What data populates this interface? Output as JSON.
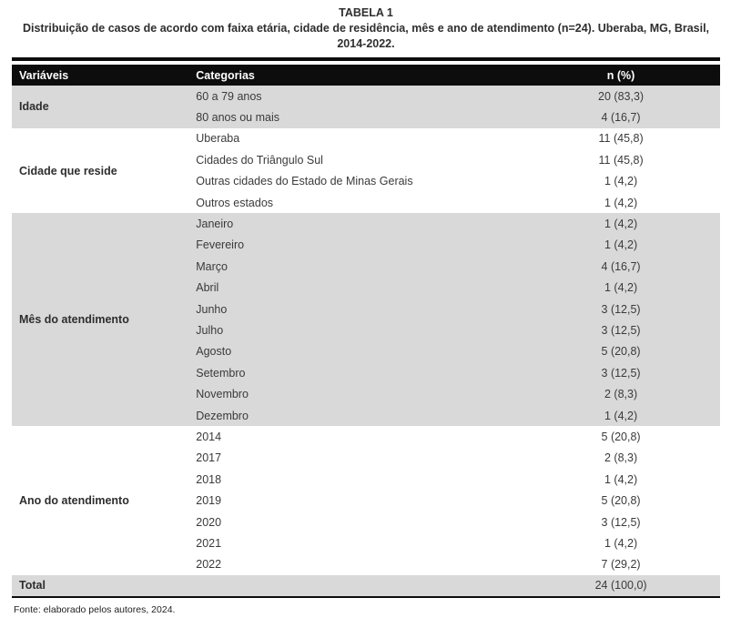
{
  "caption": {
    "title": "TABELA 1",
    "subtitle": "Distribuição de casos de acordo com faixa etária, cidade de residência, mês e ano de atendimento (n=24). Uberaba, MG, Brasil, 2014-2022."
  },
  "colors": {
    "header_bg": "#0d0d0d",
    "row_shade": "#d9d9d9",
    "body_text": "#3a3a3a"
  },
  "table": {
    "columns": [
      "Variáveis",
      "Categorias",
      "n (%)"
    ],
    "groups": [
      {
        "variable": "Idade",
        "shaded": true,
        "rows": [
          [
            "60 a 79 anos",
            "20 (83,3)"
          ],
          [
            "80 anos ou mais",
            "4 (16,7)"
          ]
        ]
      },
      {
        "variable": "Cidade que reside",
        "shaded": false,
        "rows": [
          [
            "Uberaba",
            "11 (45,8)"
          ],
          [
            "Cidades do Triângulo Sul",
            "11 (45,8)"
          ],
          [
            "Outras cidades do Estado de Minas Gerais",
            "1 (4,2)"
          ],
          [
            "Outros estados",
            "1 (4,2)"
          ]
        ]
      },
      {
        "variable": "Mês do atendimento",
        "shaded": true,
        "rows": [
          [
            "Janeiro",
            "1 (4,2)"
          ],
          [
            "Fevereiro",
            "1 (4,2)"
          ],
          [
            "Março",
            "4 (16,7)"
          ],
          [
            "Abril",
            "1 (4,2)"
          ],
          [
            "Junho",
            "3 (12,5)"
          ],
          [
            "Julho",
            "3 (12,5)"
          ],
          [
            "Agosto",
            "5 (20,8)"
          ],
          [
            "Setembro",
            "3 (12,5)"
          ],
          [
            "Novembro",
            "2 (8,3)"
          ],
          [
            "Dezembro",
            "1 (4,2)"
          ]
        ]
      },
      {
        "variable": "Ano do atendimento",
        "shaded": false,
        "rows": [
          [
            "2014",
            "5 (20,8)"
          ],
          [
            "2017",
            "2 (8,3)"
          ],
          [
            "2018",
            "1 (4,2)"
          ],
          [
            "2019",
            "5 (20,8)"
          ],
          [
            "2020",
            "3 (12,5)"
          ],
          [
            "2021",
            "1 (4,2)"
          ],
          [
            "2022",
            "7 (29,2)"
          ]
        ]
      }
    ],
    "total": {
      "label": "Total",
      "value": "24 (100,0)"
    }
  },
  "source_note": "Fonte: elaborado pelos autores, 2024."
}
